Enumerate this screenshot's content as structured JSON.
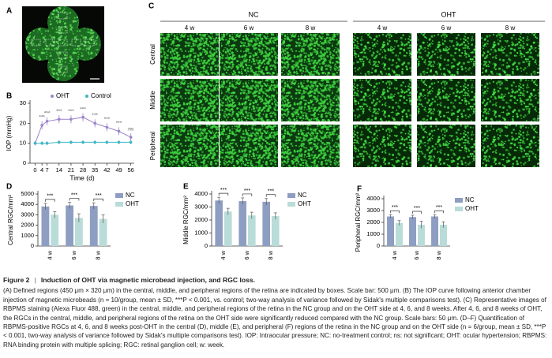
{
  "panels": [
    "A",
    "B",
    "C",
    "D",
    "E",
    "F"
  ],
  "micrographs": {
    "groups": [
      "NC",
      "OHT"
    ],
    "times": [
      "4 w",
      "6 w",
      "8 w"
    ],
    "regions": [
      "Central",
      "Middle",
      "Peripheral"
    ]
  },
  "chart_data": [
    {
      "type": "line",
      "ylabel": "IOP (mmHg)",
      "xlabel": "Time (d)",
      "x": [
        0,
        4,
        7,
        14,
        21,
        28,
        35,
        42,
        49,
        56
      ],
      "series": [
        {
          "name": "OHT",
          "color": "#9b84c9",
          "values": [
            10,
            19,
            21,
            22,
            22,
            23,
            20,
            18,
            16,
            13
          ],
          "errors": [
            1,
            2,
            2,
            2,
            2,
            2,
            2,
            2,
            2,
            2
          ]
        },
        {
          "name": "Control",
          "color": "#3fb6c2",
          "values": [
            10,
            10,
            10,
            10.5,
            10.5,
            10.5,
            10.5,
            10.5,
            10.5,
            10.5
          ],
          "errors": [
            1,
            1,
            1,
            1,
            1,
            1,
            1,
            1,
            1,
            1
          ]
        }
      ],
      "annotations": [
        {
          "x": 4,
          "text": "***"
        },
        {
          "x": 7,
          "text": "***"
        },
        {
          "x": 14,
          "text": "***"
        },
        {
          "x": 21,
          "text": "***"
        },
        {
          "x": 28,
          "text": "***"
        },
        {
          "x": 35,
          "text": "***"
        },
        {
          "x": 42,
          "text": "***"
        },
        {
          "x": 49,
          "text": "***"
        },
        {
          "x": 56,
          "text": "ns"
        }
      ],
      "xlim": [
        -3,
        58
      ],
      "xticks": [
        0,
        4,
        7,
        14,
        21,
        28,
        35,
        42,
        49,
        56
      ],
      "ylim": [
        0,
        30
      ],
      "yticks": [
        0,
        10,
        20,
        30
      ]
    },
    {
      "type": "bar",
      "ylabel": "Central RGC/mm²",
      "categories": [
        "4 w",
        "6 w",
        "8 w"
      ],
      "series": [
        {
          "name": "NC",
          "color": "#8e9ec2",
          "values": [
            3800,
            3900,
            3850
          ],
          "errors": [
            300,
            300,
            300
          ]
        },
        {
          "name": "OHT",
          "color": "#b9dcd8",
          "values": [
            3000,
            2700,
            2600
          ],
          "errors": [
            300,
            400,
            400
          ]
        }
      ],
      "annotations": [
        "***",
        "***",
        "***"
      ],
      "ylim": [
        0,
        5000
      ],
      "yticks": [
        0,
        1000,
        2000,
        3000,
        4000,
        5000
      ]
    },
    {
      "type": "bar",
      "ylabel": "Middle RGC/mm²",
      "categories": [
        "4 w",
        "6 w",
        "8 w"
      ],
      "series": [
        {
          "name": "NC",
          "color": "#8e9ec2",
          "values": [
            3500,
            3450,
            3400
          ],
          "errors": [
            250,
            250,
            250
          ]
        },
        {
          "name": "OHT",
          "color": "#b9dcd8",
          "values": [
            2650,
            2350,
            2300
          ],
          "errors": [
            250,
            250,
            250
          ]
        }
      ],
      "annotations": [
        "***",
        "***",
        "***"
      ],
      "ylim": [
        0,
        4000
      ],
      "yticks": [
        0,
        1000,
        2000,
        3000,
        4000
      ]
    },
    {
      "type": "bar",
      "ylabel": "Peripheral RGC/mm²",
      "categories": [
        "4 w",
        "6 w",
        "8 w"
      ],
      "series": [
        {
          "name": "NC",
          "color": "#8e9ec2",
          "values": [
            2500,
            2450,
            2500
          ],
          "errors": [
            150,
            150,
            150
          ]
        },
        {
          "name": "OHT",
          "color": "#b9dcd8",
          "values": [
            1950,
            1800,
            1800
          ],
          "errors": [
            200,
            300,
            250
          ]
        }
      ],
      "annotations": [
        "***",
        "***",
        "***"
      ],
      "ylim": [
        0,
        4000
      ],
      "yticks": [
        0,
        1000,
        2000,
        3000,
        4000
      ]
    }
  ],
  "caption": {
    "label": "Figure 2",
    "title": "Induction of OHT via magnetic microbead injection, and RGC loss.",
    "text": "(A) Defined regions (450 μm × 320 μm) in the central, middle, and peripheral regions of the retina are indicated by boxes. Scale bar: 500 μm. (B) The IOP curve following anterior chamber injection of magnetic microbeads (n = 10/group, mean ± SD, ***P < 0.001, vs. control; two-way analysis of variance followed by Sidak's multiple comparisons test). (C) Representative images of RBPMS staining (Alexa Fluor 488, green) in the central, middle, and peripheral regions of the retina in the NC group and on the OHT side at 4, 6, and 8 weeks. After 4, 6, and 8 weeks of OHT, the RGCs in the central, middle, and peripheral regions of the retina on the OHT side were significantly reduced compared with the NC group. Scale bars: 50 μm. (D–F) Quantification of RBPMS-positive RGCs at 4, 6, and 8 weeks post-OHT in the central (D), middle (E), and peripheral (F) regions of the retina in the NC group and on the OHT side (n = 6/group, mean ± SD, ***P < 0.001, two-way analysis of variance followed by Sidak's multiple comparisons test). IOP: Intraocular pressure; NC: no-treatment control; ns: not significant; OHT: ocular hypertension; RBPMS: RNA binding protein with multiple splicing; RGC: retinal ganglion cell; w: week."
  }
}
